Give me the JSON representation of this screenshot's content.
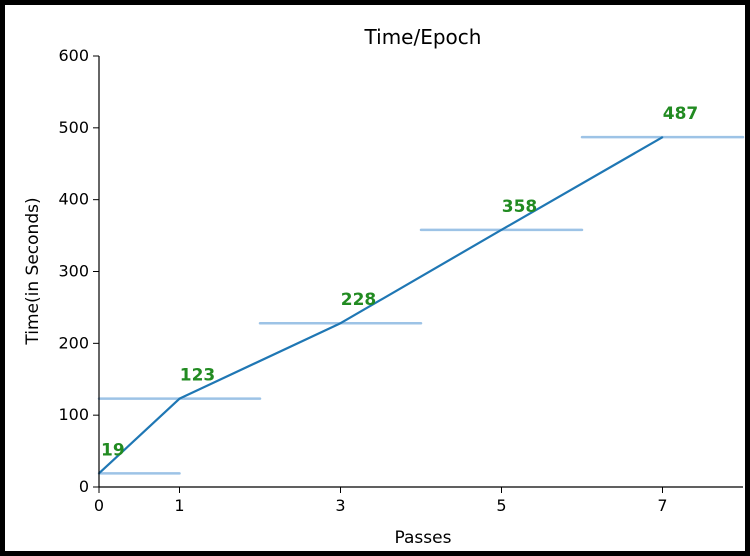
{
  "chart_data": {
    "type": "line",
    "title": "Time/Epoch",
    "xlabel": "Passes",
    "ylabel": "Time(in Seconds)",
    "xlim": [
      0,
      8
    ],
    "ylim": [
      0,
      600
    ],
    "xticks": [
      0,
      1,
      3,
      5,
      7
    ],
    "yticks": [
      0,
      100,
      200,
      300,
      400,
      500,
      600
    ],
    "grid": false,
    "series": [
      {
        "x": [
          0,
          1,
          3,
          5,
          7
        ],
        "y": [
          19,
          123,
          228,
          358,
          487
        ],
        "color": "#1f77b4"
      }
    ],
    "reference_bars": {
      "x_start": [
        0,
        0,
        2,
        4,
        6
      ],
      "x_end": [
        1,
        2,
        4,
        6,
        8
      ],
      "y": [
        19,
        123,
        228,
        358,
        487
      ],
      "color": "#9dc3e6"
    },
    "data_labels": [
      "19",
      "123",
      "228",
      "358",
      "487"
    ],
    "data_label_color": "#228b22"
  }
}
